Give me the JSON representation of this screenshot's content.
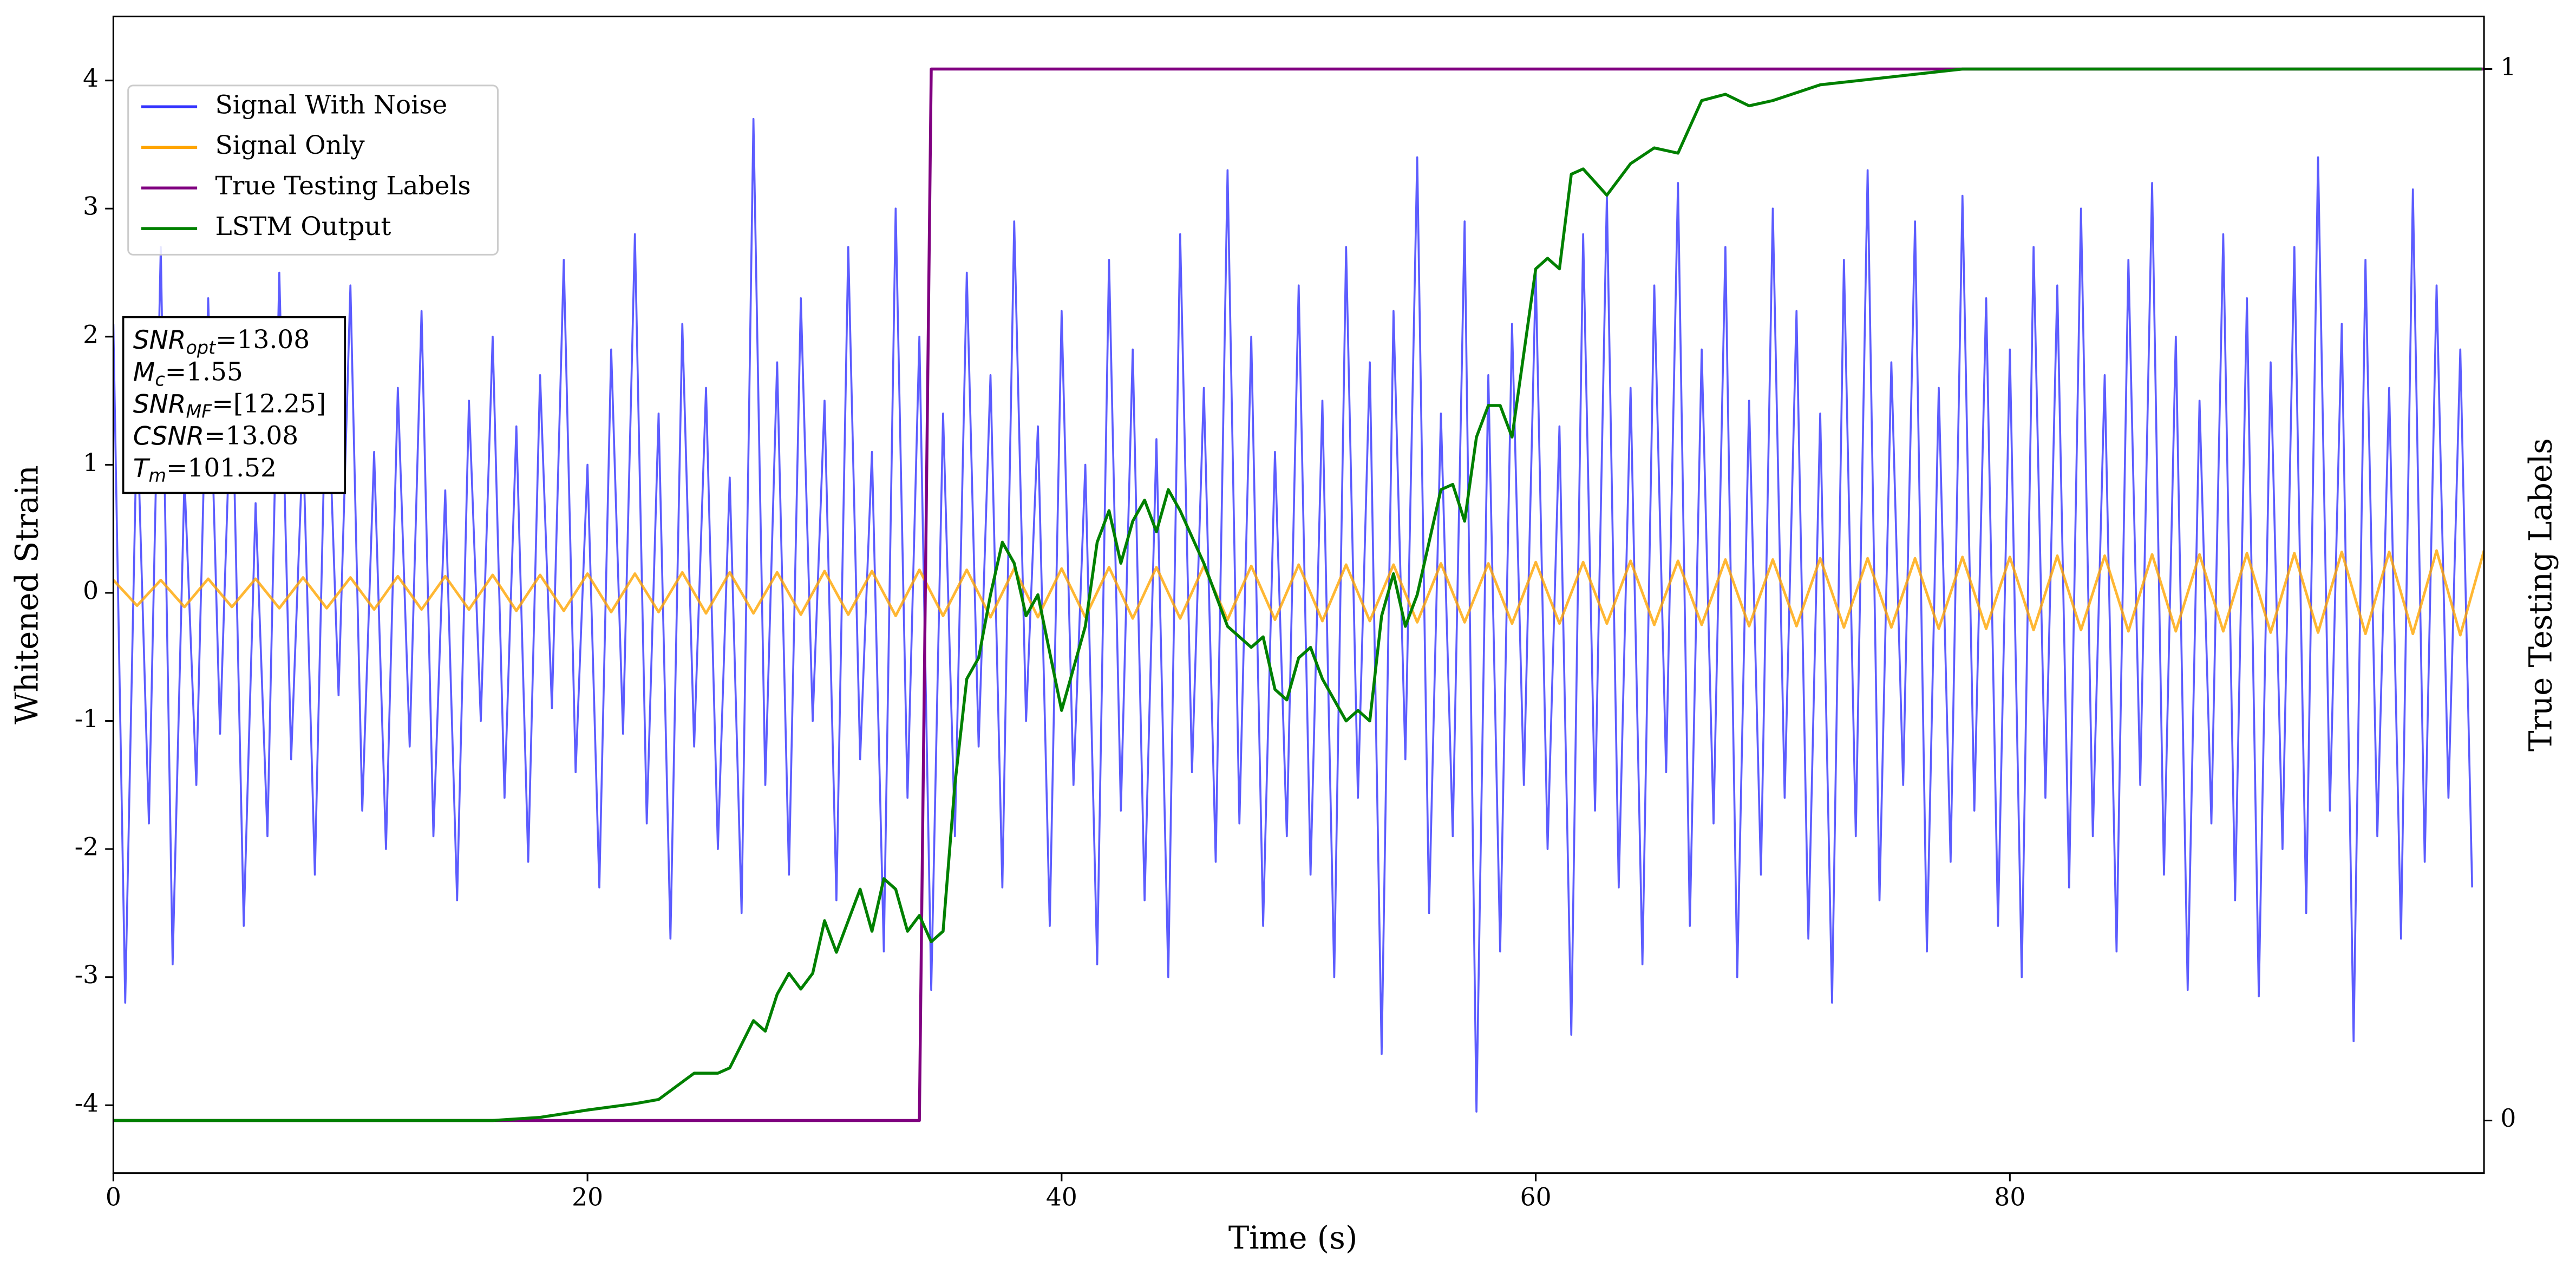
{
  "chart_data": {
    "type": "line",
    "xlabel": "Time (s)",
    "ylabel": "Whitened Strain",
    "y2label": "True Testing Labels",
    "xlim": [
      0,
      100
    ],
    "ylim": [
      -4.53,
      4.5
    ],
    "y2lim": [
      -0.05,
      1.05
    ],
    "xticks": [
      0,
      20,
      40,
      60,
      80
    ],
    "yticks": [
      -4,
      -3,
      -2,
      -1,
      0,
      1,
      2,
      3,
      4
    ],
    "y2ticks": [
      0,
      1
    ],
    "legend": "upper left",
    "annotations": [
      {
        "main": "SNR",
        "sub": "opt",
        "rest": "=13.08"
      },
      {
        "main": "M",
        "sub": "c",
        "rest": "=1.55"
      },
      {
        "main": "SNR",
        "sub": "MF",
        "rest": "=[12.25]"
      },
      {
        "main": "CSNR",
        "sub": "",
        "rest": "=13.08"
      },
      {
        "main": "T",
        "sub": "m",
        "rest": "=101.52"
      }
    ],
    "series": [
      {
        "name": "Signal With Noise",
        "color": "#3333ff",
        "x": [
          0,
          0.5,
          1,
          1.5,
          2,
          2.5,
          3,
          3.5,
          4,
          4.5,
          5,
          5.5,
          6,
          6.5,
          7,
          7.5,
          8,
          8.5,
          9,
          9.5,
          10,
          10.5,
          11,
          11.5,
          12,
          12.5,
          13,
          13.5,
          14,
          14.5,
          15,
          15.5,
          16,
          16.5,
          17,
          17.5,
          18,
          18.5,
          19,
          19.5,
          20,
          20.5,
          21,
          21.5,
          22,
          22.5,
          23,
          23.5,
          24,
          24.5,
          25,
          25.5,
          26,
          26.5,
          27,
          27.5,
          28,
          28.5,
          29,
          29.5,
          30,
          30.5,
          31,
          31.5,
          32,
          32.5,
          33,
          33.5,
          34,
          34.5,
          35,
          35.5,
          36,
          36.5,
          37,
          37.5,
          38,
          38.5,
          39,
          39.5,
          40,
          40.5,
          41,
          41.5,
          42,
          42.5,
          43,
          43.5,
          44,
          44.5,
          45,
          45.5,
          46,
          46.5,
          47,
          47.5,
          48,
          48.5,
          49,
          49.5,
          50,
          50.5,
          51,
          51.5,
          52,
          52.5,
          53,
          53.5,
          54,
          54.5,
          55,
          55.5,
          56,
          56.5,
          57,
          57.5,
          58,
          58.5,
          59,
          59.5,
          60,
          60.5,
          61,
          61.5,
          62,
          62.5,
          63,
          63.5,
          64,
          64.5,
          65,
          65.5,
          66,
          66.5,
          67,
          67.5,
          68,
          68.5,
          69,
          69.5,
          70,
          70.5,
          71,
          71.5,
          72,
          72.5,
          73,
          73.5,
          74,
          74.5,
          75,
          75.5,
          76,
          76.5,
          77,
          77.5,
          78,
          78.5,
          79,
          79.5,
          80,
          80.5,
          81,
          81.5,
          82,
          82.5,
          83,
          83.5,
          84,
          84.5,
          85,
          85.5,
          86,
          86.5,
          87,
          87.5,
          88,
          88.5,
          89,
          89.5,
          90,
          90.5,
          91,
          91.5,
          92,
          92.5,
          93,
          93.5,
          94,
          94.5,
          95,
          95.5,
          96,
          96.5,
          97,
          97.5,
          98,
          98.5,
          99,
          99.5
        ],
        "values": [
          2.1,
          -3.2,
          1.4,
          -1.8,
          2.7,
          -2.9,
          0.9,
          -1.5,
          2.3,
          -1.1,
          1.8,
          -2.6,
          0.7,
          -1.9,
          2.5,
          -1.3,
          1.2,
          -2.2,
          1.9,
          -0.8,
          2.4,
          -1.7,
          1.1,
          -2.0,
          1.6,
          -1.2,
          2.2,
          -1.9,
          0.8,
          -2.4,
          1.5,
          -1.0,
          2.0,
          -1.6,
          1.3,
          -2.1,
          1.7,
          -0.9,
          2.6,
          -1.4,
          1.0,
          -2.3,
          1.9,
          -1.1,
          2.8,
          -1.8,
          1.4,
          -2.7,
          2.1,
          -1.2,
          1.6,
          -2.0,
          0.9,
          -2.5,
          3.7,
          -1.5,
          1.8,
          -2.2,
          2.3,
          -1.0,
          1.5,
          -2.4,
          2.7,
          -1.3,
          1.1,
          -2.8,
          3.0,
          -1.6,
          2.0,
          -3.1,
          1.4,
          -1.9,
          2.5,
          -1.2,
          1.7,
          -2.3,
          2.9,
          -1.0,
          1.3,
          -2.6,
          2.2,
          -1.5,
          1.0,
          -2.9,
          2.6,
          -1.7,
          1.9,
          -2.4,
          1.2,
          -3.0,
          2.8,
          -1.4,
          1.6,
          -2.1,
          3.3,
          -1.8,
          2.0,
          -2.6,
          1.1,
          -1.9,
          2.4,
          -2.2,
          1.5,
          -3.0,
          2.7,
          -1.6,
          1.8,
          -3.6,
          2.2,
          -1.3,
          3.4,
          -2.5,
          1.4,
          -1.9,
          2.9,
          -4.05,
          1.7,
          -2.8,
          2.1,
          -1.5,
          2.5,
          -2.0,
          1.3,
          -3.45,
          2.8,
          -1.7,
          3.1,
          -2.3,
          1.6,
          -2.9,
          2.4,
          -1.4,
          3.2,
          -2.6,
          1.9,
          -1.8,
          2.7,
          -3.0,
          1.5,
          -2.2,
          3.0,
          -1.6,
          2.2,
          -2.7,
          1.4,
          -3.2,
          2.6,
          -1.9,
          3.3,
          -2.4,
          1.8,
          -1.5,
          2.9,
          -2.8,
          1.6,
          -2.1,
          3.1,
          -1.7,
          2.3,
          -2.6,
          1.9,
          -3.0,
          2.7,
          -1.6,
          2.4,
          -2.3,
          3.0,
          -1.9,
          1.7,
          -2.8,
          2.6,
          -1.5,
          3.2,
          -2.2,
          2.0,
          -3.1,
          1.5,
          -1.8,
          2.8,
          -2.4,
          2.3,
          -3.15,
          1.8,
          -2.0,
          2.7,
          -2.5,
          3.4,
          -1.7,
          2.1,
          -3.5,
          2.6,
          -1.9,
          1.6,
          -2.7,
          3.15,
          -2.1,
          2.4,
          -1.6,
          1.9,
          -2.3
        ]
      },
      {
        "name": "Signal Only",
        "color": "#ffa500",
        "x": [
          0,
          1,
          2,
          3,
          4,
          5,
          6,
          7,
          8,
          9,
          10,
          11,
          12,
          13,
          14,
          15,
          16,
          17,
          18,
          19,
          20,
          21,
          22,
          23,
          24,
          25,
          26,
          27,
          28,
          29,
          30,
          31,
          32,
          33,
          34,
          35,
          36,
          37,
          38,
          39,
          40,
          41,
          42,
          43,
          44,
          45,
          46,
          47,
          48,
          49,
          50,
          51,
          52,
          53,
          54,
          55,
          56,
          57,
          58,
          59,
          60,
          61,
          62,
          63,
          64,
          65,
          66,
          67,
          68,
          69,
          70,
          71,
          72,
          73,
          74,
          75,
          76,
          77,
          78,
          79,
          80,
          81,
          82,
          83,
          84,
          85,
          86,
          87,
          88,
          89,
          90,
          91,
          92,
          93,
          94,
          95,
          96,
          97,
          98,
          99,
          100
        ],
        "values": [
          0.1,
          -0.1,
          0.1,
          -0.11,
          0.11,
          -0.11,
          0.11,
          -0.12,
          0.12,
          -0.12,
          0.12,
          -0.13,
          0.13,
          -0.13,
          0.13,
          -0.13,
          0.14,
          -0.14,
          0.14,
          -0.14,
          0.15,
          -0.15,
          0.15,
          -0.15,
          0.16,
          -0.16,
          0.16,
          -0.16,
          0.16,
          -0.17,
          0.17,
          -0.17,
          0.17,
          -0.18,
          0.18,
          -0.18,
          0.18,
          -0.19,
          0.19,
          -0.19,
          0.19,
          -0.19,
          0.2,
          -0.2,
          0.2,
          -0.2,
          0.21,
          -0.21,
          0.21,
          -0.21,
          0.22,
          -0.22,
          0.22,
          -0.22,
          0.22,
          -0.23,
          0.23,
          -0.23,
          0.23,
          -0.24,
          0.24,
          -0.24,
          0.24,
          -0.24,
          0.25,
          -0.25,
          0.25,
          -0.25,
          0.26,
          -0.26,
          0.26,
          -0.26,
          0.27,
          -0.27,
          0.27,
          -0.27,
          0.27,
          -0.28,
          0.28,
          -0.28,
          0.28,
          -0.29,
          0.29,
          -0.29,
          0.29,
          -0.3,
          0.3,
          -0.3,
          0.3,
          -0.3,
          0.31,
          -0.31,
          0.31,
          -0.31,
          0.32,
          -0.32,
          0.32,
          -0.32,
          0.33,
          -0.33,
          0.33
        ]
      },
      {
        "name": "True Testing Labels",
        "color": "#800080",
        "axis": "y2",
        "x": [
          0,
          34,
          34.5,
          100
        ],
        "values": [
          0,
          0,
          1,
          1
        ]
      },
      {
        "name": "LSTM Output",
        "color": "#008000",
        "axis": "y2",
        "x": [
          0,
          16,
          18,
          20,
          22,
          23,
          24.5,
          25.5,
          26,
          27,
          27.5,
          28,
          28.5,
          29,
          29.5,
          30,
          30.5,
          31,
          31.5,
          32,
          32.5,
          33,
          33.5,
          34,
          34.5,
          35,
          35.5,
          36,
          36.5,
          37,
          37.5,
          38,
          38.5,
          39,
          40,
          41,
          41.5,
          42,
          42.5,
          43,
          43.5,
          44,
          44.5,
          45,
          46,
          47,
          48,
          48.5,
          49,
          49.5,
          50,
          50.5,
          51,
          52,
          52.5,
          53,
          53.5,
          54,
          54.5,
          55,
          56,
          56.5,
          57,
          57.5,
          58,
          58.5,
          59,
          60,
          60.5,
          61,
          61.5,
          62,
          63,
          64,
          65,
          66,
          67,
          68,
          69,
          70,
          72,
          74,
          76,
          78,
          80,
          90,
          99.9
        ],
        "values": [
          0,
          0,
          0.003,
          0.01,
          0.016,
          0.02,
          0.045,
          0.045,
          0.05,
          0.095,
          0.085,
          0.12,
          0.14,
          0.125,
          0.14,
          0.19,
          0.16,
          0.19,
          0.22,
          0.18,
          0.23,
          0.22,
          0.18,
          0.195,
          0.17,
          0.18,
          0.32,
          0.42,
          0.44,
          0.5,
          0.55,
          0.53,
          0.48,
          0.5,
          0.39,
          0.47,
          0.55,
          0.58,
          0.53,
          0.57,
          0.59,
          0.56,
          0.6,
          0.58,
          0.53,
          0.47,
          0.45,
          0.46,
          0.41,
          0.4,
          0.44,
          0.45,
          0.42,
          0.38,
          0.39,
          0.38,
          0.48,
          0.52,
          0.47,
          0.5,
          0.6,
          0.605,
          0.57,
          0.65,
          0.68,
          0.68,
          0.65,
          0.81,
          0.82,
          0.81,
          0.9,
          0.905,
          0.88,
          0.91,
          0.925,
          0.92,
          0.97,
          0.976,
          0.965,
          0.97,
          0.985,
          0.99,
          0.995,
          1.0,
          1.0,
          1.0,
          1.0
        ]
      }
    ]
  }
}
